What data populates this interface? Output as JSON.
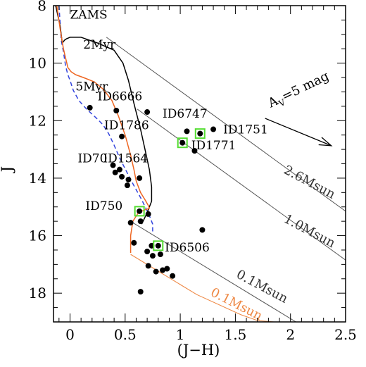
{
  "chart_data": {
    "type": "scatter",
    "xlabel": "(J−H)",
    "ylabel": "J",
    "xlim": [
      -0.15,
      2.5
    ],
    "ylim": [
      19,
      8
    ],
    "y_inverted": true,
    "x_ticks": [
      0,
      0.5,
      1,
      1.5,
      2,
      2.5
    ],
    "x_tick_labels": [
      "0",
      "0.5",
      "1",
      "1.5",
      "2",
      "2.5"
    ],
    "y_ticks": [
      8,
      10,
      12,
      14,
      16,
      18
    ],
    "y_tick_labels": [
      "8",
      "10",
      "12",
      "14",
      "16",
      "18"
    ],
    "grid": false,
    "colors": {
      "zams": "#3344dd",
      "iso_2myr": "#000000",
      "iso_5myr": "#ee6622",
      "reddening": "#555555",
      "track_0_1_5myr": "#ee8844",
      "highlight": "#55dd33",
      "points": "#000000"
    },
    "isochrones": [
      {
        "name": "ZAMS",
        "color": "#3344dd",
        "dashed": true,
        "x": [
          -0.1,
          -0.09,
          -0.08,
          -0.06,
          -0.04,
          -0.02,
          0.0,
          0.03,
          0.08,
          0.15,
          0.25,
          0.3,
          0.35,
          0.4,
          0.45,
          0.55,
          0.65,
          0.72,
          0.75,
          0.75
        ],
        "y": [
          8.0,
          8.6,
          9.2,
          9.6,
          10.1,
          10.4,
          10.6,
          10.95,
          11.3,
          11.6,
          11.95,
          12.15,
          12.45,
          12.85,
          13.3,
          14.05,
          14.75,
          15.3,
          15.6,
          15.9
        ]
      },
      {
        "name": "2Myr",
        "color": "#000000",
        "dashed": false,
        "x": [
          -0.13,
          -0.09,
          -0.07,
          -0.05,
          -0.03,
          0.0,
          0.1,
          0.25,
          0.4,
          0.48,
          0.53,
          0.58,
          0.64,
          0.68,
          0.72,
          0.74,
          0.74,
          0.7,
          0.65
        ],
        "y": [
          8.0,
          8.7,
          9.3,
          9.2,
          9.15,
          9.1,
          9.1,
          9.3,
          9.55,
          10.0,
          10.6,
          11.4,
          12.3,
          13.0,
          13.7,
          14.3,
          14.8,
          15.2,
          15.6
        ]
      },
      {
        "name": "5Myr",
        "color": "#ee6622",
        "dashed": false,
        "x": [
          -0.12,
          -0.09,
          -0.06,
          -0.02,
          0.01,
          0.05,
          0.12,
          0.22,
          0.3,
          0.38,
          0.44,
          0.5,
          0.55,
          0.58,
          0.6,
          0.64,
          0.68,
          0.71,
          0.72,
          0.68,
          0.62,
          0.57,
          0.55,
          0.55
        ],
        "y": [
          8.0,
          8.8,
          9.5,
          10.15,
          10.3,
          10.4,
          10.5,
          10.65,
          10.9,
          11.3,
          11.85,
          12.5,
          13.2,
          13.7,
          14.1,
          14.5,
          14.75,
          14.95,
          15.05,
          15.1,
          15.2,
          15.5,
          16.0,
          16.6
        ]
      }
    ],
    "reddening_lines": [
      {
        "label": "2.6Msun",
        "x": [
          0.33,
          2.5
        ],
        "y": [
          9.1,
          15.15
        ]
      },
      {
        "label": "1.0Msun",
        "x": [
          0.61,
          2.5
        ],
        "y": [
          11.6,
          16.85
        ]
      },
      {
        "label": "0.1Msun",
        "x": [
          0.57,
          2.05
        ],
        "y": [
          15.55,
          19.0
        ]
      }
    ],
    "track_5myr_0_1": {
      "label": "0.1Msun",
      "x": [
        0.55,
        0.85,
        1.15,
        1.55,
        1.7,
        1.85
      ],
      "y": [
        16.65,
        17.35,
        18.05,
        18.75,
        18.95,
        19.0
      ]
    },
    "reddening_vector": {
      "label": "A",
      "sub": "V",
      "suffix": "=5 mag",
      "x": [
        1.77,
        2.37
      ],
      "y": [
        11.92,
        12.87
      ]
    },
    "points": [
      {
        "x": 0.18,
        "y": 11.55
      },
      {
        "x": 0.42,
        "y": 11.65
      },
      {
        "x": 0.7,
        "y": 11.7
      },
      {
        "x": 1.06,
        "y": 12.37
      },
      {
        "x": 1.3,
        "y": 12.3
      },
      {
        "x": 0.47,
        "y": 12.55
      },
      {
        "x": 1.13,
        "y": 13.05
      },
      {
        "x": 0.39,
        "y": 13.55
      },
      {
        "x": 0.41,
        "y": 13.8
      },
      {
        "x": 0.45,
        "y": 13.7
      },
      {
        "x": 0.47,
        "y": 13.95
      },
      {
        "x": 0.53,
        "y": 14.05
      },
      {
        "x": 0.52,
        "y": 14.25
      },
      {
        "x": 0.63,
        "y": 14.0
      },
      {
        "x": 0.55,
        "y": 15.55
      },
      {
        "x": 0.71,
        "y": 15.25
      },
      {
        "x": 0.64,
        "y": 15.5
      },
      {
        "x": 0.74,
        "y": 16.35
      },
      {
        "x": 1.2,
        "y": 15.8
      },
      {
        "x": 0.58,
        "y": 16.25
      },
      {
        "x": 0.7,
        "y": 16.55
      },
      {
        "x": 0.75,
        "y": 16.7
      },
      {
        "x": 0.82,
        "y": 16.65
      },
      {
        "x": 0.71,
        "y": 17.05
      },
      {
        "x": 0.78,
        "y": 17.25
      },
      {
        "x": 0.84,
        "y": 17.2
      },
      {
        "x": 0.88,
        "y": 17.15
      },
      {
        "x": 0.93,
        "y": 17.4
      },
      {
        "x": 0.64,
        "y": 17.95
      },
      {
        "x": 1.02,
        "y": 12.77,
        "highlight": true
      },
      {
        "x": 1.18,
        "y": 12.45,
        "highlight": true
      },
      {
        "x": 0.63,
        "y": 15.15,
        "highlight": true
      },
      {
        "x": 0.8,
        "y": 16.35,
        "highlight": true
      }
    ],
    "annotations": [
      {
        "text": "ZAMS",
        "x": 0.0,
        "y": 8.45,
        "color": "#3344dd"
      },
      {
        "text": "2Myr",
        "x": 0.12,
        "y": 9.5,
        "color": "#000000"
      },
      {
        "text": "5Myr",
        "x": 0.05,
        "y": 10.95,
        "color": "#ee6622"
      },
      {
        "text": "ID6666",
        "x": 0.25,
        "y": 11.3,
        "color": "#000000"
      },
      {
        "text": "ID6747",
        "x": 0.84,
        "y": 11.9,
        "color": "#000000"
      },
      {
        "text": "ID1786",
        "x": 0.31,
        "y": 12.3,
        "color": "#000000"
      },
      {
        "text": "ID1751",
        "x": 1.39,
        "y": 12.45,
        "color": "#000000"
      },
      {
        "text": "ID1771",
        "x": 1.1,
        "y": 13.0,
        "color": "#000000"
      },
      {
        "text": "ID1564",
        "x": 0.3,
        "y": 13.45,
        "color": "#000000"
      },
      {
        "text": "ID70",
        "x": 0.07,
        "y": 13.45,
        "color": "#000000"
      },
      {
        "text": "ID750",
        "x": 0.14,
        "y": 15.1,
        "color": "#000000"
      },
      {
        "text": "ID6506",
        "x": 0.86,
        "y": 16.55,
        "color": "#000000"
      }
    ]
  }
}
